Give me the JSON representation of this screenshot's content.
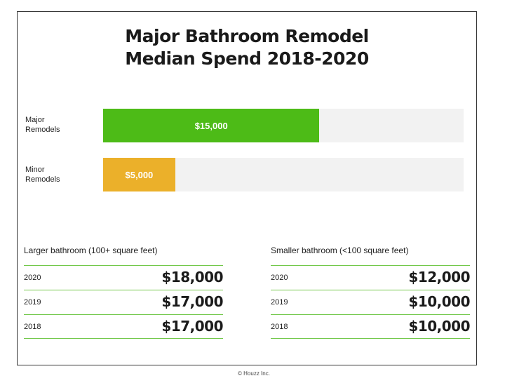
{
  "title_line1": "Major Bathroom Remodel",
  "title_line2": "Median Spend 2018-2020",
  "colors": {
    "major": "#4dbb17",
    "minor": "#ebb02a",
    "track": "#f2f2f2",
    "rule": "#72c84a"
  },
  "chart_data": {
    "type": "bar",
    "orientation": "horizontal",
    "categories": [
      "Major Remodels",
      "Minor Remodels"
    ],
    "labels": [
      [
        "Major",
        "Remodels"
      ],
      [
        "Minor",
        "Remodels"
      ]
    ],
    "values": [
      15000,
      5000
    ],
    "value_labels": [
      "$15,000",
      "$5,000"
    ],
    "xlim": [
      0,
      25000
    ],
    "title": "Major Bathroom Remodel Median Spend 2018-2020"
  },
  "tables": [
    {
      "title": "Larger bathroom  (100+ square feet)",
      "rows": [
        {
          "year": "2020",
          "value": "$18,000"
        },
        {
          "year": "2019",
          "value": "$17,000"
        },
        {
          "year": "2018",
          "value": "$17,000"
        }
      ]
    },
    {
      "title": "Smaller bathroom  (<100 square feet)",
      "rows": [
        {
          "year": "2020",
          "value": "$12,000"
        },
        {
          "year": "2019",
          "value": "$10,000"
        },
        {
          "year": "2018",
          "value": "$10,000"
        }
      ]
    }
  ],
  "footer": "© Houzz Inc."
}
